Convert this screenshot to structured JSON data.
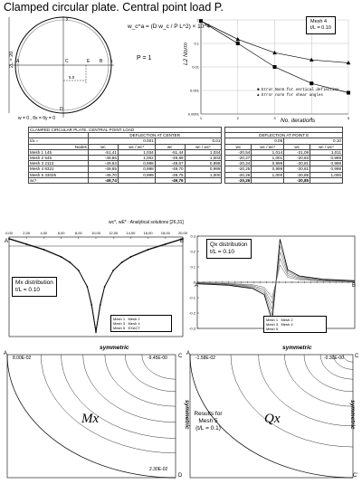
{
  "title": "Clamped circular plate. Central point load P.",
  "plate": {
    "dimension_label": "2L = 20",
    "point_labels": [
      "A",
      "B",
      "C",
      "D",
      "E"
    ],
    "dim_5": "5.0",
    "axis_x": "x",
    "axis_y": "y",
    "formula": "w_c^a = (D w_c / P L^2) × 10^4",
    "load": "P = 1",
    "bc": "w = 0 , θx = θy = 0"
  },
  "convergence": {
    "ylabel": "L2 Norm",
    "xlabel": "No. iterations",
    "mesh_box": [
      "Mesh 4",
      "t/L = 0.10"
    ],
    "legend": [
      "Error Norm for vertical deflection",
      "Error norm for shear angles"
    ],
    "y_ticks": [
      "1",
      "0.1",
      "0.01",
      "0.001",
      "0.0001"
    ],
    "x_ticks": [
      "1",
      "2",
      "3",
      "4",
      "5"
    ]
  },
  "table": {
    "title": "CLAMPED CIRCULAR PLATE. CENTRAL POINT LOAD",
    "header_center": "DEFLECTION   AT   CENTER",
    "header_e": "DEFLECTION   AT   POINT   E",
    "tL_label": "t/a =",
    "tL_values": [
      "0.001",
      "0.01",
      "0.05",
      "0.10"
    ],
    "nodes_label": "Nodes",
    "w_label": "wc",
    "ratio_label": "wc / wc*",
    "rows": [
      {
        "name": "Mesh 1",
        "nodes": "145",
        "v": [
          "-51,41",
          "1,034",
          "-51,44",
          "1,034",
          "-20,54",
          "1,014",
          "-21,09",
          "1,011"
        ]
      },
      {
        "name": "Mesh 2",
        "nodes": "545",
        "v": [
          "-49,86",
          "1,002",
          "-49,89",
          "1,003",
          "-20,27",
          "1,001",
          "-20,83",
          "0,999"
        ]
      },
      {
        "name": "Mesh 3",
        "nodes": "2113",
        "v": [
          "-49,63",
          "0,998",
          "-49,67",
          "0,998",
          "-20,24",
          "0,999",
          "-20,81",
          "0,998"
        ]
      },
      {
        "name": "Mesh 4",
        "nodes": "8321",
        "v": [
          "-49,65",
          "0,998",
          "-49,70",
          "0,999",
          "-20,25",
          "0,999",
          "-20,81",
          "0,998"
        ]
      },
      {
        "name": "Mesh 5",
        "nodes": "33025",
        "v": [
          "-49,70",
          "0,999",
          "-49,75",
          "1,000",
          "-20,26",
          "1,000",
          "-20,85",
          "1,000"
        ]
      }
    ],
    "analytic_label": "wc*",
    "analytic": [
      "-49,74",
      "-49,76",
      "-20,26",
      "-20,85"
    ],
    "footnote": "wc*, wE* : Analytical solutions [26,31]"
  },
  "mx_plot": {
    "title": "Mx distribution",
    "subtitle": "t/L = 0.10",
    "x_ticks": [
      "0,00",
      "2,00",
      "4,00",
      "6,00",
      "8,00",
      "10,00",
      "12,00",
      "14,00",
      "16,00",
      "18,00",
      "20,00"
    ],
    "left_label": "A",
    "right_label": "B",
    "legend": [
      "Mesh 1",
      "Mesh 2",
      "Mesh 3",
      "Mesh 4",
      "Mesh 5",
      "EXACT"
    ],
    "bottom_label": "symmetric"
  },
  "qx_plot": {
    "title": "Qx distribution",
    "subtitle": "t/L = 0.10",
    "y_ticks": [
      "0.3",
      "0.2",
      "0.1",
      "0",
      "-0.1",
      "-0.2",
      "-0.3"
    ],
    "left_label": "A",
    "right_label": "B",
    "legend": [
      "Mesh 1",
      "Mesh 2",
      "Mesh 3",
      "Mesh 4",
      "Mesh 5"
    ],
    "bottom_label": "symmetric"
  },
  "contour_mx": {
    "label": "Mx",
    "corner_A": "A",
    "corner_C": "C",
    "corner_D": "D",
    "value_tl": "8.00E-02",
    "value_tr": "-9.45E-00",
    "value_br": "2.30E-02",
    "side_label": "symmetric"
  },
  "contour_qx": {
    "label": "Qx",
    "corner_A": "A",
    "corner_C": "C",
    "corner_Cp": "C'",
    "value_tl": "-1.58E-02",
    "value_tr": "-0.30E-00",
    "side_label": "symmetric"
  },
  "results_note": [
    "Results for",
    "Mesh 5",
    "(t/L = 0.1)"
  ],
  "chart_data": [
    {
      "type": "line",
      "title": "",
      "xlabel": "No. iterations",
      "ylabel": "L2 Norm",
      "y_scale": "log",
      "ylim": [
        0.0001,
        1
      ],
      "xlim": [
        1,
        5
      ],
      "x": [
        1,
        2,
        3,
        4,
        5
      ],
      "series": [
        {
          "name": "Error Norm for vertical deflection",
          "values": [
            0.9,
            0.1,
            0.01,
            0.002,
            0.0008
          ]
        },
        {
          "name": "Error norm for shear angles",
          "values": [
            0.9,
            0.15,
            0.04,
            0.02,
            0.015
          ]
        }
      ]
    },
    {
      "type": "table",
      "title": "CLAMPED CIRCULAR PLATE. CENTRAL POINT LOAD",
      "columns": [
        "Nodes",
        "wc (t/a=0.001)",
        "wc/wc* (0.001)",
        "wc (0.01)",
        "wc/wc* (0.01)",
        "wE (0.05)",
        "wE/wE* (0.05)",
        "wE (0.10)",
        "wE/wE* (0.10)"
      ]
    },
    {
      "type": "line",
      "title": "Mx distribution",
      "subtitle": "t/L = 0.10",
      "xlim": [
        0,
        20
      ],
      "ylim": [
        -1,
        0.1
      ],
      "x": [
        0,
        2,
        4,
        6,
        7,
        8,
        9,
        9.5,
        10,
        10.5,
        11,
        12,
        13,
        14,
        16,
        18,
        20
      ],
      "series": [
        {
          "name": "EXACT",
          "values": [
            0.08,
            0.02,
            -0.04,
            -0.12,
            -0.18,
            -0.27,
            -0.45,
            -0.65,
            -0.95,
            -0.65,
            -0.45,
            -0.27,
            -0.18,
            -0.12,
            -0.04,
            0.02,
            0.08
          ]
        }
      ]
    },
    {
      "type": "line",
      "title": "Qx distribution",
      "subtitle": "t/L = 0.10",
      "xlim": [
        0,
        20
      ],
      "ylim": [
        -0.3,
        0.3
      ],
      "x": [
        0,
        4,
        7,
        8.5,
        9.5,
        10,
        10.5,
        11.5,
        13,
        16,
        20
      ],
      "series": [
        {
          "name": "Mesh 5",
          "values": [
            -0.01,
            -0.02,
            -0.04,
            -0.08,
            -0.25,
            0,
            0.28,
            0.08,
            0.04,
            0.02,
            0.01
          ]
        }
      ]
    }
  ]
}
